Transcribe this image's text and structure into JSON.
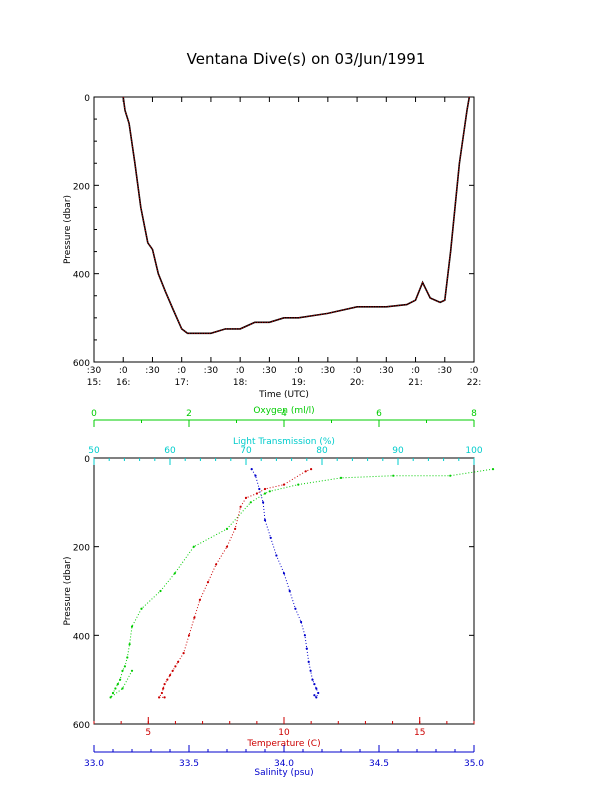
{
  "page": {
    "title": "Ventana Dive(s) on 03/Jun/1991"
  },
  "colors": {
    "time_series": "#cc0000",
    "oxygen": "#00cc00",
    "light": "#00cccc",
    "temperature": "#cc0000",
    "salinity": "#0000cc",
    "axis": "#000000"
  },
  "chart_data": [
    {
      "type": "line",
      "title": "Ventana Dive(s) on 03/Jun/1991",
      "xlabel": "Time (UTC)",
      "ylabel": "Pressure (dbar)",
      "ylim": [
        600,
        0
      ],
      "y_ticks": [
        "0",
        "200",
        "400",
        "600"
      ],
      "x_ticks": [
        {
          "top": ":30",
          "bottom": "15:"
        },
        {
          "top": ":0",
          "bottom": "16:"
        },
        {
          "top": ":30",
          "bottom": ""
        },
        {
          "top": ":0",
          "bottom": "17:"
        },
        {
          "top": ":30",
          "bottom": ""
        },
        {
          "top": ":0",
          "bottom": "18:"
        },
        {
          "top": ":30",
          "bottom": ""
        },
        {
          "top": ":0",
          "bottom": "19:"
        },
        {
          "top": ":30",
          "bottom": ""
        },
        {
          "top": ":0",
          "bottom": "20:"
        },
        {
          "top": ":30",
          "bottom": ""
        },
        {
          "top": ":0",
          "bottom": "21:"
        },
        {
          "top": ":30",
          "bottom": ""
        },
        {
          "top": ":0",
          "bottom": "22:"
        }
      ],
      "xlim_hours": [
        15.5,
        22.0
      ],
      "series": [
        {
          "x_hours": [
            16.0,
            16.03,
            16.1,
            16.2,
            16.3,
            16.42,
            16.5,
            16.6,
            16.72,
            16.85,
            17.0,
            17.1,
            17.25,
            17.5,
            17.75,
            18.0,
            18.25,
            18.5,
            18.75,
            19.0,
            19.5,
            20.0,
            20.5,
            20.85,
            21.0,
            21.12,
            21.25,
            21.42,
            21.5,
            21.6,
            21.75,
            21.88,
            21.92
          ],
          "pressure": [
            0,
            30,
            60,
            150,
            250,
            330,
            345,
            400,
            440,
            480,
            525,
            535,
            535,
            535,
            525,
            525,
            510,
            510,
            500,
            500,
            490,
            475,
            475,
            470,
            460,
            420,
            455,
            465,
            460,
            350,
            150,
            30,
            0
          ]
        }
      ]
    },
    {
      "type": "scatter",
      "ylabel": "Pressure (dbar)",
      "ylim": [
        600,
        0
      ],
      "y_ticks": [
        "0",
        "200",
        "400",
        "600"
      ],
      "axes": [
        {
          "label": "Oxygen (ml/l)",
          "position": "top",
          "range": [
            0,
            8
          ],
          "ticks": [
            "0",
            "2",
            "4",
            "6",
            "8"
          ]
        },
        {
          "label": "Light Transmission (%)",
          "position": "top",
          "range": [
            50,
            100
          ],
          "ticks": [
            "50",
            "60",
            "70",
            "80",
            "90",
            "100"
          ]
        },
        {
          "label": "Temperature (C)",
          "position": "bottom",
          "range": [
            3,
            17
          ],
          "ticks": [
            "5",
            "10",
            "15"
          ]
        },
        {
          "label": "Salinity (psu)",
          "position": "bottom",
          "range": [
            33.0,
            35.0
          ],
          "ticks": [
            "33.0",
            "33.5",
            "34.0",
            "34.5",
            "35.0"
          ]
        }
      ],
      "series": [
        {
          "axis": "Oxygen (ml/l)",
          "x": [
            8.4,
            7.5,
            6.3,
            5.2,
            4.3,
            3.7,
            3.6,
            3.3,
            2.8,
            2.1,
            1.7,
            1.4,
            1.0,
            0.8,
            0.75,
            0.7,
            0.65,
            0.6,
            0.55,
            0.5,
            0.45,
            0.4,
            0.35,
            0.6,
            0.8
          ],
          "pressure": [
            25,
            40,
            40,
            45,
            60,
            75,
            80,
            100,
            160,
            200,
            260,
            300,
            340,
            380,
            420,
            450,
            470,
            480,
            500,
            510,
            520,
            530,
            540,
            520,
            480
          ]
        },
        {
          "axis": "Temperature (C)",
          "x": [
            11.0,
            10.8,
            10.0,
            9.3,
            9.0,
            8.6,
            8.4,
            8.2,
            7.9,
            7.5,
            7.2,
            6.9,
            6.7,
            6.5,
            6.3,
            6.1,
            6.0,
            5.9,
            5.8,
            5.7,
            5.6,
            5.55,
            5.5,
            5.4,
            5.6
          ],
          "pressure": [
            25,
            30,
            60,
            70,
            80,
            90,
            110,
            160,
            200,
            240,
            280,
            320,
            360,
            400,
            440,
            460,
            470,
            480,
            490,
            500,
            510,
            520,
            530,
            540,
            540
          ]
        },
        {
          "axis": "Salinity (psu)",
          "x": [
            33.83,
            33.85,
            33.87,
            33.89,
            33.9,
            33.93,
            33.96,
            34.0,
            34.03,
            34.06,
            34.09,
            34.11,
            34.12,
            34.13,
            34.14,
            34.15,
            34.16,
            34.17,
            34.18,
            34.17,
            34.16
          ],
          "pressure": [
            25,
            40,
            70,
            100,
            140,
            180,
            220,
            260,
            300,
            340,
            370,
            400,
            430,
            460,
            480,
            500,
            510,
            520,
            530,
            540,
            535
          ]
        }
      ]
    }
  ]
}
